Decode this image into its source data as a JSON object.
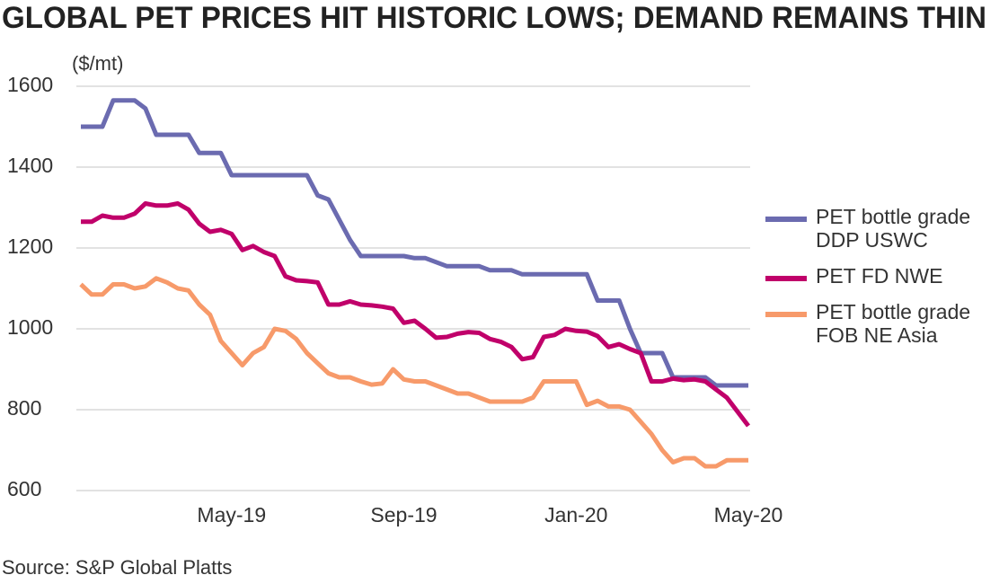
{
  "chart_data": {
    "type": "line",
    "title": "GLOBAL PET PRICES HIT HISTORIC LOWS; DEMAND REMAINS THIN",
    "y_label": "($/mt)",
    "source": "Source: S&P Global Platts",
    "categories": [
      null,
      null,
      null,
      null,
      null,
      null,
      null,
      null,
      null,
      null,
      null,
      null,
      null,
      null,
      "May-19",
      null,
      null,
      null,
      null,
      null,
      null,
      null,
      null,
      null,
      null,
      null,
      null,
      null,
      null,
      null,
      "Sep-19",
      null,
      null,
      null,
      null,
      null,
      null,
      null,
      null,
      null,
      null,
      null,
      null,
      null,
      null,
      null,
      "Jan-20",
      null,
      null,
      null,
      null,
      null,
      null,
      null,
      null,
      null,
      null,
      null,
      null,
      null,
      null,
      null,
      "May-20"
    ],
    "series": [
      {
        "name": "PET bottle grade DDP USWC",
        "color": "#6b6bb0",
        "values": [
          1500,
          1500,
          1500,
          1565,
          1565,
          1565,
          1545,
          1480,
          1480,
          1480,
          1480,
          1435,
          1435,
          1435,
          1380,
          1380,
          1380,
          1380,
          1380,
          1380,
          1380,
          1380,
          1330,
          1320,
          1270,
          1220,
          1180,
          1180,
          1180,
          1180,
          1180,
          1175,
          1175,
          1165,
          1155,
          1155,
          1155,
          1155,
          1145,
          1145,
          1145,
          1135,
          1135,
          1135,
          1135,
          1135,
          1135,
          1135,
          1070,
          1070,
          1070,
          1000,
          940,
          940,
          940,
          880,
          880,
          880,
          880,
          860,
          860,
          860,
          860
        ]
      },
      {
        "name": "PET FD NWE",
        "color": "#c0006a",
        "values": [
          1265,
          1265,
          1280,
          1275,
          1275,
          1285,
          1310,
          1305,
          1305,
          1310,
          1295,
          1260,
          1240,
          1245,
          1235,
          1195,
          1205,
          1190,
          1180,
          1130,
          1120,
          1118,
          1115,
          1060,
          1060,
          1068,
          1060,
          1058,
          1055,
          1050,
          1015,
          1020,
          1000,
          978,
          980,
          988,
          992,
          990,
          975,
          968,
          955,
          925,
          930,
          980,
          985,
          1000,
          995,
          993,
          982,
          955,
          962,
          950,
          940,
          870,
          870,
          877,
          873,
          875,
          870,
          850,
          830,
          795,
          760
        ]
      },
      {
        "name": "PET bottle grade FOB NE Asia",
        "color": "#f79a6a",
        "values": [
          1110,
          1085,
          1085,
          1110,
          1110,
          1100,
          1105,
          1125,
          1115,
          1100,
          1095,
          1060,
          1035,
          970,
          940,
          910,
          940,
          955,
          1000,
          995,
          975,
          940,
          915,
          890,
          880,
          880,
          870,
          862,
          865,
          900,
          875,
          870,
          870,
          860,
          850,
          840,
          840,
          830,
          820,
          820,
          820,
          820,
          830,
          870,
          870,
          870,
          870,
          812,
          822,
          808,
          808,
          800,
          770,
          740,
          700,
          670,
          680,
          680,
          660,
          660,
          675,
          675,
          675
        ]
      }
    ],
    "ylim": [
      600,
      1600
    ],
    "yticks": [
      600,
      800,
      1000,
      1200,
      1400,
      1600
    ],
    "grid": true
  }
}
